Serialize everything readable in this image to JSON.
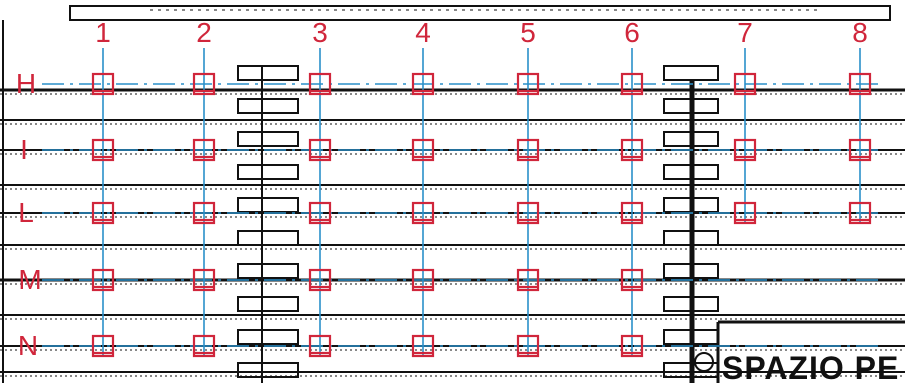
{
  "columns": [
    "1",
    "2",
    "3",
    "4",
    "5",
    "6",
    "7",
    "8"
  ],
  "rows": [
    "H",
    "I",
    "L",
    "M",
    "N"
  ],
  "note_text": "SPAZIO PE",
  "colors": {
    "axis_label": "#d0263b",
    "node_marker": "#d0263b",
    "grid_line": "#2a8fc9",
    "plan_lines": "#111111",
    "background": "#ffffff"
  },
  "node_marker_icon": "square-node-icon"
}
